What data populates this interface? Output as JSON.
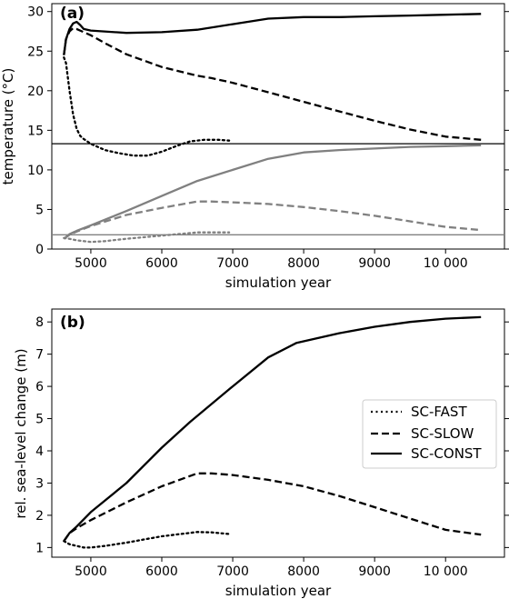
{
  "chart_data": [
    {
      "type": "line",
      "panel_label": "(a)",
      "xlabel": "simulation year",
      "ylabel": "temperature (°C)",
      "xlim": [
        4450,
        10830
      ],
      "ylim": [
        0,
        31
      ],
      "xticks": [
        5000,
        6000,
        7000,
        8000,
        9000,
        10000
      ],
      "xtick_labels": [
        "5000",
        "6000",
        "7000",
        "8000",
        "9000",
        "10 000"
      ],
      "yticks": [
        0,
        5,
        10,
        15,
        20,
        25,
        30
      ],
      "ytick_labels": [
        "0",
        "5",
        "10",
        "15",
        "20",
        "25",
        "30"
      ],
      "note": "upper curves share the same 0-31 scale shown by the tick labels; a horizontal divider at about 13.3 separates upper (black) and lower (gray) curve groups",
      "hlines": [
        {
          "y": 13.3,
          "color": "#000000"
        },
        {
          "y": 1.8,
          "color": "#808080"
        }
      ],
      "series": [
        {
          "style": "dotted",
          "color": "#000000",
          "x": [
            4620,
            4650,
            4700,
            4750,
            4800,
            4850,
            4900,
            5000,
            5200,
            5400,
            5600,
            5800,
            6000,
            6200,
            6400,
            6600,
            6800,
            6950
          ],
          "y": [
            24.2,
            23.5,
            20.0,
            17.0,
            15.2,
            14.3,
            13.9,
            13.3,
            12.5,
            12.1,
            11.8,
            11.8,
            12.3,
            13.0,
            13.6,
            13.8,
            13.8,
            13.7
          ]
        },
        {
          "style": "dashed",
          "color": "#000000",
          "x": [
            4620,
            4650,
            4700,
            4750,
            4800,
            5000,
            5200,
            5500,
            6000,
            6500,
            6700,
            7000,
            7500,
            8000,
            8500,
            9000,
            9500,
            10000,
            10500
          ],
          "y": [
            24.5,
            26.5,
            27.5,
            27.9,
            27.8,
            27.0,
            26.0,
            24.6,
            23.0,
            21.9,
            21.6,
            21.0,
            19.8,
            18.6,
            17.4,
            16.2,
            15.1,
            14.2,
            13.8
          ]
        },
        {
          "style": "solid",
          "color": "#000000",
          "x": [
            4620,
            4650,
            4700,
            4750,
            4800,
            4850,
            4900,
            5000,
            5500,
            6000,
            6500,
            7000,
            7500,
            8000,
            8500,
            9000,
            9500,
            10000,
            10500
          ],
          "y": [
            24.5,
            26.5,
            27.8,
            28.5,
            28.7,
            28.3,
            27.8,
            27.6,
            27.3,
            27.4,
            27.7,
            28.4,
            29.1,
            29.3,
            29.3,
            29.4,
            29.5,
            29.6,
            29.7
          ]
        },
        {
          "style": "dotted",
          "color": "#808080",
          "x": [
            4620,
            4700,
            4800,
            5000,
            5200,
            5500,
            6000,
            6500,
            6950
          ],
          "y": [
            1.4,
            1.3,
            1.1,
            0.9,
            1.0,
            1.3,
            1.7,
            2.1,
            2.1
          ]
        },
        {
          "style": "dashed",
          "color": "#808080",
          "x": [
            4620,
            4700,
            4800,
            5000,
            5500,
            6000,
            6500,
            6700,
            7000,
            7500,
            8000,
            8500,
            9000,
            9500,
            10000,
            10500
          ],
          "y": [
            1.3,
            1.8,
            2.2,
            2.9,
            4.3,
            5.2,
            6.0,
            6.0,
            5.9,
            5.7,
            5.3,
            4.8,
            4.2,
            3.5,
            2.8,
            2.4
          ]
        },
        {
          "style": "solid",
          "color": "#808080",
          "x": [
            4620,
            4700,
            4800,
            5000,
            5500,
            6000,
            6500,
            7000,
            7500,
            8000,
            8500,
            9000,
            9500,
            10000,
            10500
          ],
          "y": [
            1.3,
            1.9,
            2.3,
            3.0,
            4.8,
            6.7,
            8.6,
            10.0,
            11.4,
            12.2,
            12.5,
            12.7,
            12.9,
            13.0,
            13.1
          ]
        }
      ]
    },
    {
      "type": "line",
      "panel_label": "(b)",
      "xlabel": "simulation year",
      "ylabel": "rel. sea-level change (m)",
      "xlim": [
        4450,
        10830
      ],
      "ylim": [
        0.7,
        8.4
      ],
      "xticks": [
        5000,
        6000,
        7000,
        8000,
        9000,
        10000
      ],
      "xtick_labels": [
        "5000",
        "6000",
        "7000",
        "8000",
        "9000",
        "10 000"
      ],
      "yticks": [
        1,
        2,
        3,
        4,
        5,
        6,
        7,
        8
      ],
      "ytick_labels": [
        "1",
        "2",
        "3",
        "4",
        "5",
        "6",
        "7",
        "8"
      ],
      "legend": {
        "position": "center-right",
        "entries": [
          {
            "label": "SC-FAST",
            "style": "dotted"
          },
          {
            "label": "SC-SLOW",
            "style": "dashed"
          },
          {
            "label": "SC-CONST",
            "style": "solid"
          }
        ]
      },
      "series": [
        {
          "name": "SC-FAST",
          "style": "dotted",
          "color": "#000000",
          "x": [
            4620,
            4700,
            4800,
            4900,
            5000,
            5200,
            5500,
            6000,
            6500,
            6700,
            6950
          ],
          "y": [
            1.2,
            1.1,
            1.05,
            1.0,
            1.0,
            1.05,
            1.15,
            1.35,
            1.48,
            1.47,
            1.42
          ]
        },
        {
          "name": "SC-SLOW",
          "style": "dashed",
          "color": "#000000",
          "x": [
            4620,
            4700,
            4800,
            5000,
            5500,
            6000,
            6500,
            6700,
            7000,
            7500,
            8000,
            8500,
            9000,
            9500,
            10000,
            10500
          ],
          "y": [
            1.2,
            1.45,
            1.6,
            1.85,
            2.4,
            2.9,
            3.3,
            3.3,
            3.25,
            3.1,
            2.9,
            2.6,
            2.25,
            1.9,
            1.55,
            1.4
          ]
        },
        {
          "name": "SC-CONST",
          "style": "solid",
          "color": "#000000",
          "x": [
            4620,
            4700,
            4800,
            5000,
            5500,
            6000,
            6400,
            7000,
            7500,
            7900,
            8500,
            9000,
            9500,
            10000,
            10500
          ],
          "y": [
            1.2,
            1.45,
            1.65,
            2.1,
            3.0,
            4.1,
            4.9,
            6.0,
            6.9,
            7.35,
            7.65,
            7.85,
            8.0,
            8.1,
            8.15
          ]
        }
      ]
    }
  ]
}
